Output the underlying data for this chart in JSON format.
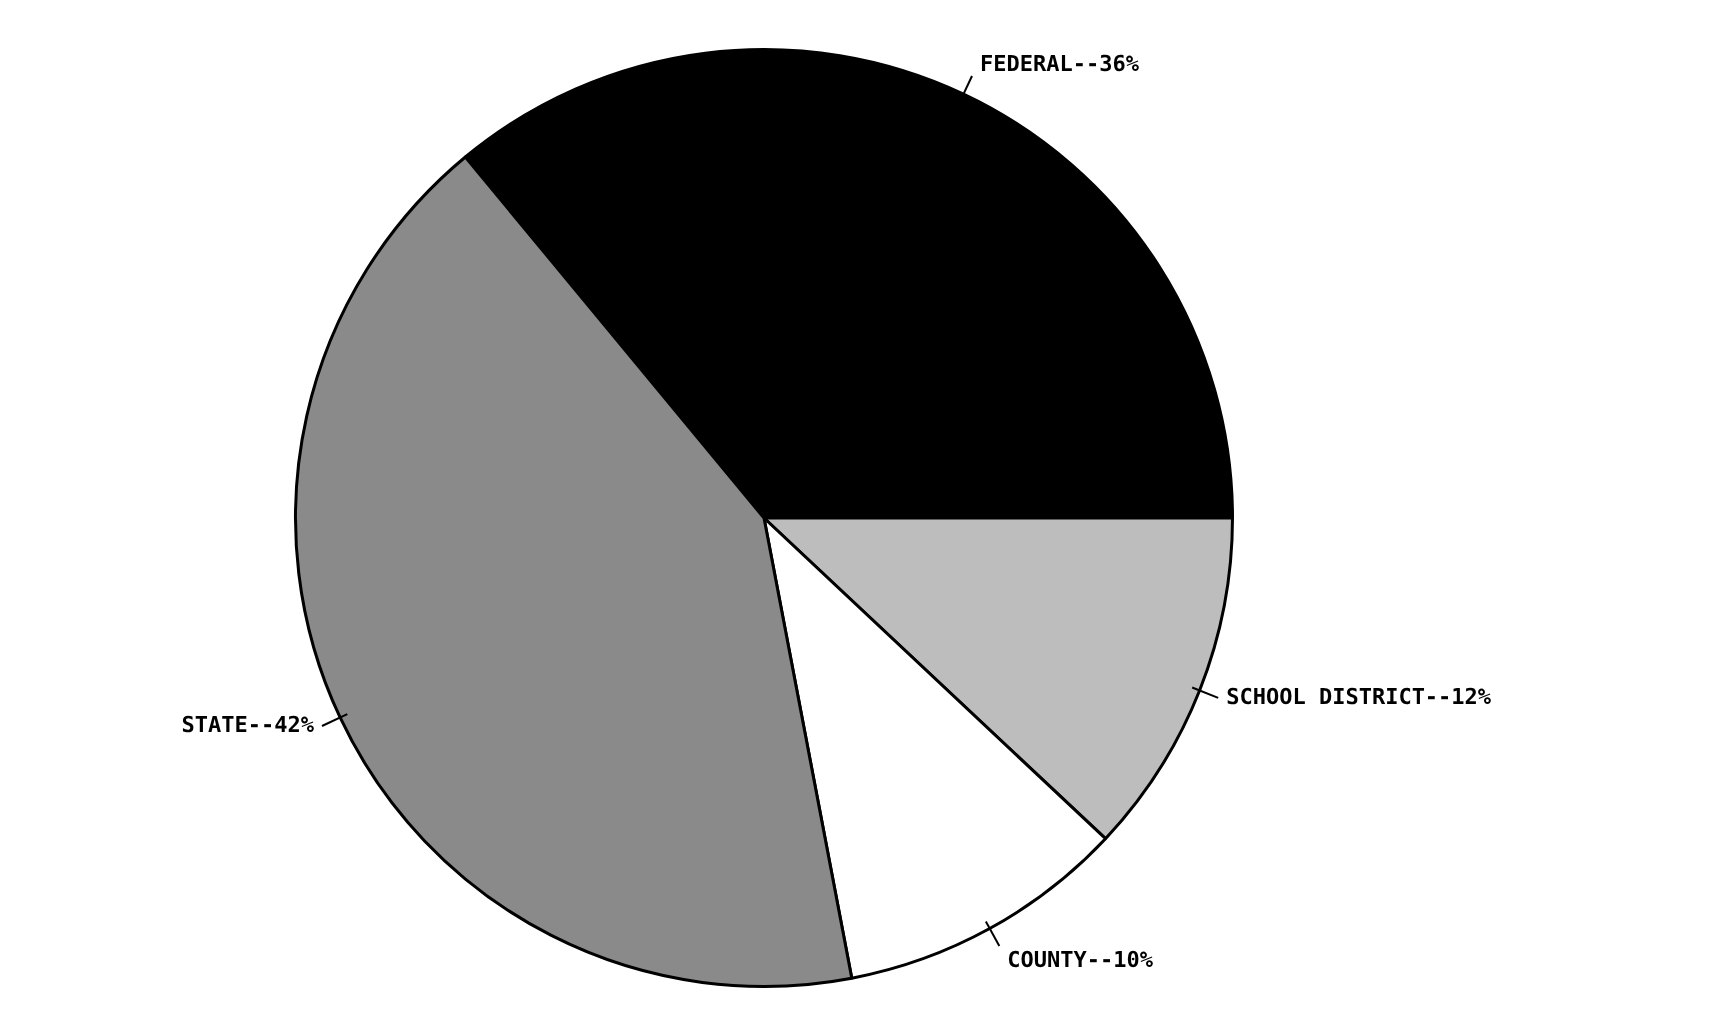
{
  "chart_data": {
    "type": "pie",
    "categories": [
      "FEDERAL--36%",
      "SCHOOL DISTRICT--12%",
      "COUNTY--10%",
      "STATE--42%"
    ],
    "values": [
      36,
      12,
      10,
      42
    ],
    "colors": [
      "#000000",
      "#bdbdbd",
      "#ffffff",
      "#8a8a8a"
    ],
    "legend": false
  }
}
